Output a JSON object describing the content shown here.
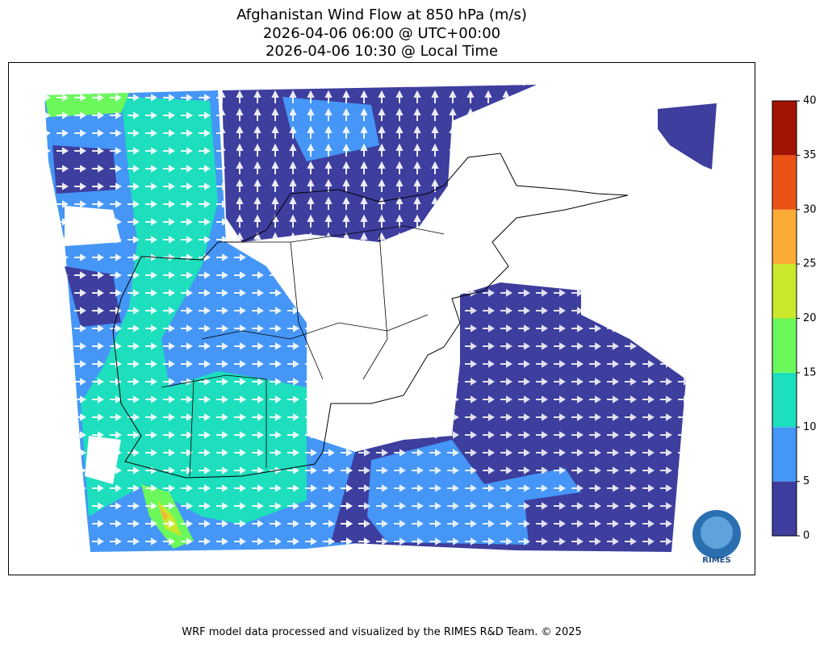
{
  "title": [
    "Afghanistan Wind Flow at 850 hPa (m/s)",
    "2026-04-06 06:00 @ UTC+00:00",
    "2026-04-06 10:30 @ Local Time"
  ],
  "colorbar": {
    "ticks": [
      0,
      5,
      10,
      15,
      20,
      25,
      30,
      35,
      40
    ],
    "colors": [
      "#3d3e9e",
      "#4596f6",
      "#1ddebd",
      "#6bf85b",
      "#cbe72c",
      "#fcab36",
      "#eb5316",
      "#a21402"
    ]
  },
  "logo": "RIMES",
  "footer": "WRF model data processed and visualized by the RIMES R&D Team. © 2025"
}
